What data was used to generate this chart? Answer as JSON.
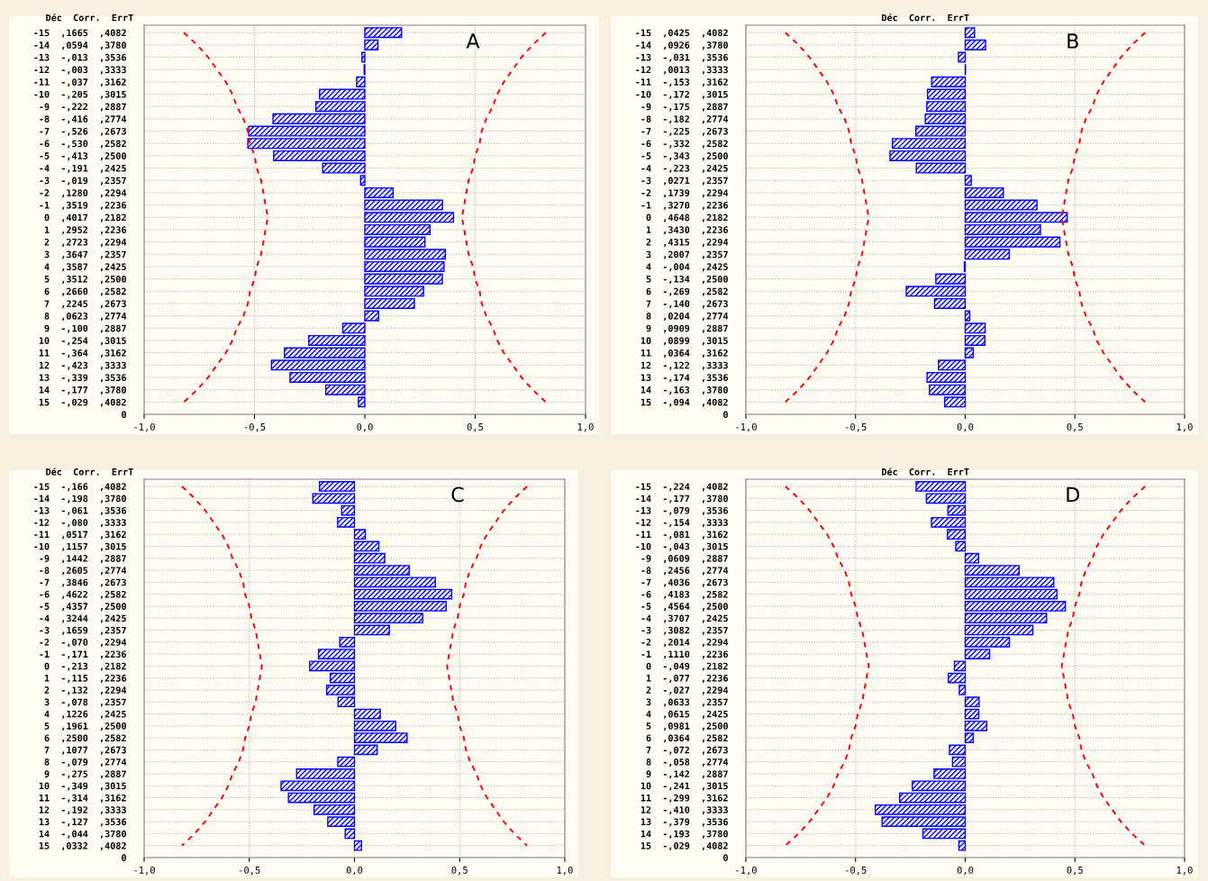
{
  "chart_data": [
    {
      "type": "bar",
      "orientation": "horizontal",
      "title": "A",
      "ylabel": "Déc  Corr.  ErrT",
      "grid": true,
      "xlim": [
        -1,
        1
      ],
      "xticks": [
        {
          "value": -1,
          "label": "-1,0"
        },
        {
          "value": -0.5,
          "label": "-0,5"
        },
        {
          "value": 0,
          "label": "0,0"
        },
        {
          "value": 0.5,
          "label": "0,5"
        },
        {
          "value": 1,
          "label": "1,0"
        }
      ],
      "categories": [
        "-15  ,1665  ,4082",
        "-14  ,0594  ,3780",
        "-13  -,013  ,3536",
        "-12  -,003  ,3333",
        "-11  -,037  ,3162",
        "-10  -,205  ,3015",
        " -9  -,222  ,2887",
        " -8  -,416  ,2774",
        " -7  -,526  ,2673",
        " -6  -,530  ,2582",
        " -5  -,413  ,2500",
        " -4  -,191  ,2425",
        " -3  -,019  ,2357",
        " -2  ,1280  ,2294",
        " -1  ,3519  ,2236",
        "  0  ,4017  ,2182",
        "  1  ,2952  ,2236",
        "  2  ,2723  ,2294",
        "  3  ,3647  ,2357",
        "  4  ,3587  ,2425",
        "  5  ,3512  ,2500",
        "  6  ,2660  ,2582",
        "  7  ,2245  ,2673",
        "  8  ,0623  ,2774",
        "  9  -,100  ,2887",
        " 10  -,254  ,3015",
        " 11  -,364  ,3162",
        " 12  -,423  ,3333",
        " 13  -,339  ,3536",
        " 14  -,177  ,3780",
        " 15  -,029  ,4082",
        "0"
      ],
      "series": [
        {
          "color": "#0000ff",
          "values": [
            0.1665,
            0.0594,
            -0.013,
            -0.003,
            -0.037,
            -0.205,
            -0.222,
            -0.416,
            -0.526,
            -0.53,
            -0.413,
            -0.191,
            -0.019,
            0.128,
            0.3519,
            0.4017,
            0.2952,
            0.2723,
            0.3647,
            0.3587,
            0.3512,
            0.266,
            0.2245,
            0.0623,
            -0.1,
            -0.254,
            -0.364,
            -0.423,
            -0.339,
            -0.177,
            -0.029,
            null
          ]
        },
        {
          "type": "line",
          "color": "#ff0000",
          "line_style": "dashed",
          "values": [
            0.82,
            0.76,
            0.71,
            0.67,
            0.63,
            0.6,
            0.58,
            0.55,
            0.53,
            0.52,
            0.5,
            0.49,
            0.47,
            0.46,
            0.45,
            0.44,
            0.45,
            0.46,
            0.47,
            0.49,
            0.5,
            0.52,
            0.53,
            0.55,
            0.58,
            0.6,
            0.63,
            0.67,
            0.71,
            0.76,
            0.82,
            null
          ]
        },
        {
          "type": "line",
          "color": "#ff0000",
          "line_style": "dashed",
          "values": [
            -0.82,
            -0.76,
            -0.71,
            -0.67,
            -0.63,
            -0.6,
            -0.58,
            -0.55,
            -0.53,
            -0.52,
            -0.5,
            -0.49,
            -0.47,
            -0.46,
            -0.45,
            -0.44,
            -0.45,
            -0.46,
            -0.47,
            -0.49,
            -0.5,
            -0.52,
            -0.53,
            -0.55,
            -0.58,
            -0.6,
            -0.63,
            -0.67,
            -0.71,
            -0.76,
            -0.82,
            null
          ]
        }
      ]
    },
    {
      "type": "bar",
      "orientation": "horizontal",
      "title": "B",
      "ylabel": "Déc  Corr.  ErrT",
      "grid": true,
      "xlim": [
        -1,
        1
      ],
      "xticks": [
        {
          "value": -1,
          "label": "-1,0"
        },
        {
          "value": -0.5,
          "label": "-0,5"
        },
        {
          "value": 0,
          "label": "0,0"
        },
        {
          "value": 0.5,
          "label": "0,5"
        },
        {
          "value": 1,
          "label": "1,0"
        }
      ],
      "categories": [
        "-15  ,0425  ,4082",
        "-14  ,0926  ,3780",
        "-13  -,031  ,3536",
        "-12  ,0013  ,3333",
        "-11  -,153  ,3162",
        "-10  -,172  ,3015",
        " -9  -,175  ,2887",
        " -8  -,182  ,2774",
        " -7  -,225  ,2673",
        " -6  -,332  ,2582",
        " -5  -,343  ,2500",
        " -4  -,223  ,2425",
        " -3  ,0271  ,2357",
        " -2  ,1739  ,2294",
        " -1  ,3270  ,2236",
        "  0  ,4648  ,2182",
        "  1  ,3430  ,2236",
        "  2  ,4315  ,2294",
        "  3  ,2007  ,2357",
        "  4  -,004  ,2425",
        "  5  -,134  ,2500",
        "  6  -,269  ,2582",
        "  7  -,140  ,2673",
        "  8  ,0204  ,2774",
        "  9  ,0909  ,2887",
        " 10  ,0899  ,3015",
        " 11  ,0364  ,3162",
        " 12  -,122  ,3333",
        " 13  -,174  ,3536",
        " 14  -,163  ,3780",
        " 15  -,094  ,4082",
        "0"
      ],
      "series": [
        {
          "color": "#0000ff",
          "values": [
            0.0425,
            0.0926,
            -0.031,
            0.0013,
            -0.153,
            -0.172,
            -0.175,
            -0.182,
            -0.225,
            -0.332,
            -0.343,
            -0.223,
            0.0271,
            0.1739,
            0.327,
            0.4648,
            0.343,
            0.4315,
            0.2007,
            -0.004,
            -0.134,
            -0.269,
            -0.14,
            0.0204,
            0.0909,
            0.0899,
            0.0364,
            -0.122,
            -0.174,
            -0.163,
            -0.094,
            null
          ]
        },
        {
          "type": "line",
          "color": "#ff0000",
          "line_style": "dashed",
          "values": [
            0.82,
            0.76,
            0.71,
            0.67,
            0.63,
            0.6,
            0.58,
            0.55,
            0.53,
            0.52,
            0.5,
            0.49,
            0.47,
            0.46,
            0.45,
            0.44,
            0.45,
            0.46,
            0.47,
            0.49,
            0.5,
            0.52,
            0.53,
            0.55,
            0.58,
            0.6,
            0.63,
            0.67,
            0.71,
            0.76,
            0.82,
            null
          ]
        },
        {
          "type": "line",
          "color": "#ff0000",
          "line_style": "dashed",
          "values": [
            -0.82,
            -0.76,
            -0.71,
            -0.67,
            -0.63,
            -0.6,
            -0.58,
            -0.55,
            -0.53,
            -0.52,
            -0.5,
            -0.49,
            -0.47,
            -0.46,
            -0.45,
            -0.44,
            -0.45,
            -0.46,
            -0.47,
            -0.49,
            -0.5,
            -0.52,
            -0.53,
            -0.55,
            -0.58,
            -0.6,
            -0.63,
            -0.67,
            -0.71,
            -0.76,
            -0.82,
            null
          ]
        }
      ]
    },
    {
      "type": "bar",
      "orientation": "horizontal",
      "title": "C",
      "ylabel": "Déc  Corr.  ErrT",
      "grid": true,
      "xlim": [
        -1,
        1
      ],
      "xticks": [
        {
          "value": -1,
          "label": "-1,0"
        },
        {
          "value": -0.5,
          "label": "-0,5"
        },
        {
          "value": 0,
          "label": "0,0"
        },
        {
          "value": 0.5,
          "label": "0,5"
        },
        {
          "value": 1,
          "label": "1,0"
        }
      ],
      "categories": [
        "-15  -,166  ,4082",
        "-14  -,198  ,3780",
        "-13  -,061  ,3536",
        "-12  -,080  ,3333",
        "-11  ,0517  ,3162",
        "-10  ,1157  ,3015",
        " -9  ,1442  ,2887",
        " -8  ,2605  ,2774",
        " -7  ,3846  ,2673",
        " -6  ,4622  ,2582",
        " -5  ,4357  ,2500",
        " -4  ,3244  ,2425",
        " -3  ,1659  ,2357",
        " -2  -,070  ,2294",
        " -1  -,171  ,2236",
        "  0  -,213  ,2182",
        "  1  -,115  ,2236",
        "  2  -,132  ,2294",
        "  3  -,078  ,2357",
        "  4  ,1226  ,2425",
        "  5  ,1961  ,2500",
        "  6  ,2500  ,2582",
        "  7  ,1077  ,2673",
        "  8  -,079  ,2774",
        "  9  -,275  ,2887",
        " 10  -,349  ,3015",
        " 11  -,314  ,3162",
        " 12  -,192  ,3333",
        " 13  -,127  ,3536",
        " 14  -,044  ,3780",
        " 15  ,0332  ,4082",
        "0"
      ],
      "series": [
        {
          "color": "#0000ff",
          "values": [
            -0.166,
            -0.198,
            -0.061,
            -0.08,
            0.0517,
            0.1157,
            0.1442,
            0.2605,
            0.3846,
            0.4622,
            0.4357,
            0.3244,
            0.1659,
            -0.07,
            -0.171,
            -0.213,
            -0.115,
            -0.132,
            -0.078,
            0.1226,
            0.1961,
            0.25,
            0.1077,
            -0.079,
            -0.275,
            -0.349,
            -0.314,
            -0.192,
            -0.127,
            -0.044,
            0.0332,
            null
          ]
        },
        {
          "type": "line",
          "color": "#ff0000",
          "line_style": "dashed",
          "values": [
            0.82,
            0.76,
            0.71,
            0.67,
            0.63,
            0.6,
            0.58,
            0.55,
            0.53,
            0.52,
            0.5,
            0.49,
            0.47,
            0.46,
            0.45,
            0.44,
            0.45,
            0.46,
            0.47,
            0.49,
            0.5,
            0.52,
            0.53,
            0.55,
            0.58,
            0.6,
            0.63,
            0.67,
            0.71,
            0.76,
            0.82,
            null
          ]
        },
        {
          "type": "line",
          "color": "#ff0000",
          "line_style": "dashed",
          "values": [
            -0.82,
            -0.76,
            -0.71,
            -0.67,
            -0.63,
            -0.6,
            -0.58,
            -0.55,
            -0.53,
            -0.52,
            -0.5,
            -0.49,
            -0.47,
            -0.46,
            -0.45,
            -0.44,
            -0.45,
            -0.46,
            -0.47,
            -0.49,
            -0.5,
            -0.52,
            -0.53,
            -0.55,
            -0.58,
            -0.6,
            -0.63,
            -0.67,
            -0.71,
            -0.76,
            -0.82,
            null
          ]
        }
      ]
    },
    {
      "type": "bar",
      "orientation": "horizontal",
      "title": "D",
      "ylabel": "Déc  Corr.  ErrT",
      "grid": true,
      "xlim": [
        -1,
        1
      ],
      "xticks": [
        {
          "value": -1,
          "label": "-1,0"
        },
        {
          "value": -0.5,
          "label": "-0,5"
        },
        {
          "value": 0,
          "label": "0,0"
        },
        {
          "value": 0.5,
          "label": "0,5"
        },
        {
          "value": 1,
          "label": "1,0"
        }
      ],
      "categories": [
        "-15  -,224  ,4082",
        "-14  -,177  ,3780",
        "-13  -,079  ,3536",
        "-12  -,154  ,3333",
        "-11  -,081  ,3162",
        "-10  -,043  ,3015",
        " -9  ,0609  ,2887",
        " -8  ,2456  ,2774",
        " -7  ,4036  ,2673",
        " -6  ,4183  ,2582",
        " -5  ,4564  ,2500",
        " -4  ,3707  ,2425",
        " -3  ,3082  ,2357",
        " -2  ,2014  ,2294",
        " -1  ,1110  ,2236",
        "  0  -,049  ,2182",
        "  1  -,077  ,2236",
        "  2  -,027  ,2294",
        "  3  ,0633  ,2357",
        "  4  ,0615  ,2425",
        "  5  ,0981  ,2500",
        "  6  ,0364  ,2582",
        "  7  -,072  ,2673",
        "  8  -,058  ,2774",
        "  9  -,142  ,2887",
        " 10  -,241  ,3015",
        " 11  -,299  ,3162",
        " 12  -,410  ,3333",
        " 13  -,379  ,3536",
        " 14  -,193  ,3780",
        " 15  -,029  ,4082",
        "0"
      ],
      "series": [
        {
          "color": "#0000ff",
          "values": [
            -0.224,
            -0.177,
            -0.079,
            -0.154,
            -0.081,
            -0.043,
            0.0609,
            0.2456,
            0.4036,
            0.4183,
            0.4564,
            0.3707,
            0.3082,
            0.2014,
            0.111,
            -0.049,
            -0.077,
            -0.027,
            0.0633,
            0.0615,
            0.0981,
            0.0364,
            -0.072,
            -0.058,
            -0.142,
            -0.241,
            -0.299,
            -0.41,
            -0.379,
            -0.193,
            -0.029,
            null
          ]
        },
        {
          "type": "line",
          "color": "#ff0000",
          "line_style": "dashed",
          "values": [
            0.82,
            0.76,
            0.71,
            0.67,
            0.63,
            0.6,
            0.58,
            0.55,
            0.53,
            0.52,
            0.5,
            0.49,
            0.47,
            0.46,
            0.45,
            0.44,
            0.45,
            0.46,
            0.47,
            0.49,
            0.5,
            0.52,
            0.53,
            0.55,
            0.58,
            0.6,
            0.63,
            0.67,
            0.71,
            0.76,
            0.82,
            null
          ]
        },
        {
          "type": "line",
          "color": "#ff0000",
          "line_style": "dashed",
          "values": [
            -0.82,
            -0.76,
            -0.71,
            -0.67,
            -0.63,
            -0.6,
            -0.58,
            -0.55,
            -0.53,
            -0.52,
            -0.5,
            -0.49,
            -0.47,
            -0.46,
            -0.45,
            -0.44,
            -0.45,
            -0.46,
            -0.47,
            -0.49,
            -0.5,
            -0.52,
            -0.53,
            -0.55,
            -0.58,
            -0.6,
            -0.63,
            -0.67,
            -0.71,
            -0.76,
            -0.82,
            null
          ]
        }
      ]
    }
  ]
}
